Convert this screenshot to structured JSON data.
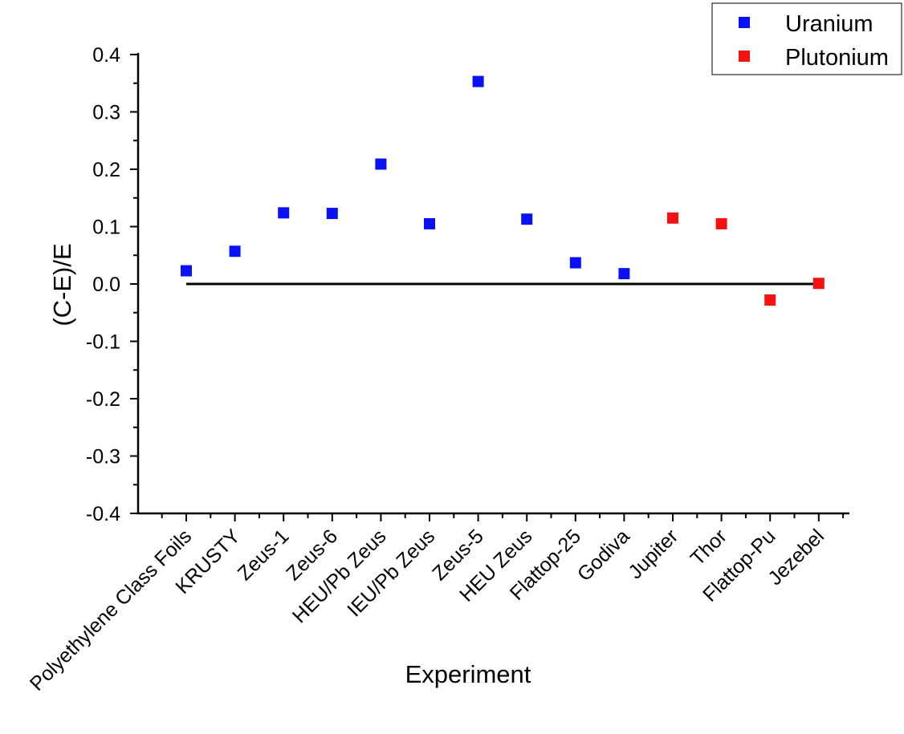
{
  "chart_data": {
    "type": "scatter",
    "title": "",
    "xlabel": "Experiment",
    "ylabel": "(C-E)/E",
    "ylim": [
      -0.4,
      0.4
    ],
    "yticks": [
      "-0.4",
      "-0.3",
      "-0.2",
      "-0.1",
      "0.0",
      "0.1",
      "0.2",
      "0.3",
      "0.4"
    ],
    "categories": [
      "Polyethylene Class Foils",
      "KRUSTY",
      "Zeus-1",
      "Zeus-6",
      "HEU/Pb Zeus",
      "IEU/Pb Zeus",
      "Zeus-5",
      "HEU Zeus",
      "Flattop-25",
      "Godiva",
      "Jupiter",
      "Thor",
      "Flattop-Pu",
      "Jezebel"
    ],
    "series": [
      {
        "name": "Uranium",
        "color": "#0a12f5",
        "x": [
          "Polyethylene Class Foils",
          "KRUSTY",
          "Zeus-1",
          "Zeus-6",
          "HEU/Pb Zeus",
          "IEU/Pb Zeus",
          "Zeus-5",
          "HEU Zeus",
          "Flattop-25",
          "Godiva"
        ],
        "values": [
          0.023,
          0.057,
          0.124,
          0.123,
          0.209,
          0.105,
          0.353,
          0.113,
          0.037,
          0.018
        ]
      },
      {
        "name": "Plutonium",
        "color": "#f51212",
        "x": [
          "Jupiter",
          "Thor",
          "Flattop-Pu",
          "Jezebel"
        ],
        "values": [
          0.115,
          0.105,
          -0.028,
          0.001
        ]
      }
    ],
    "reference_line": {
      "y": 0.0
    },
    "legend_position": "top-right",
    "grid": false
  }
}
